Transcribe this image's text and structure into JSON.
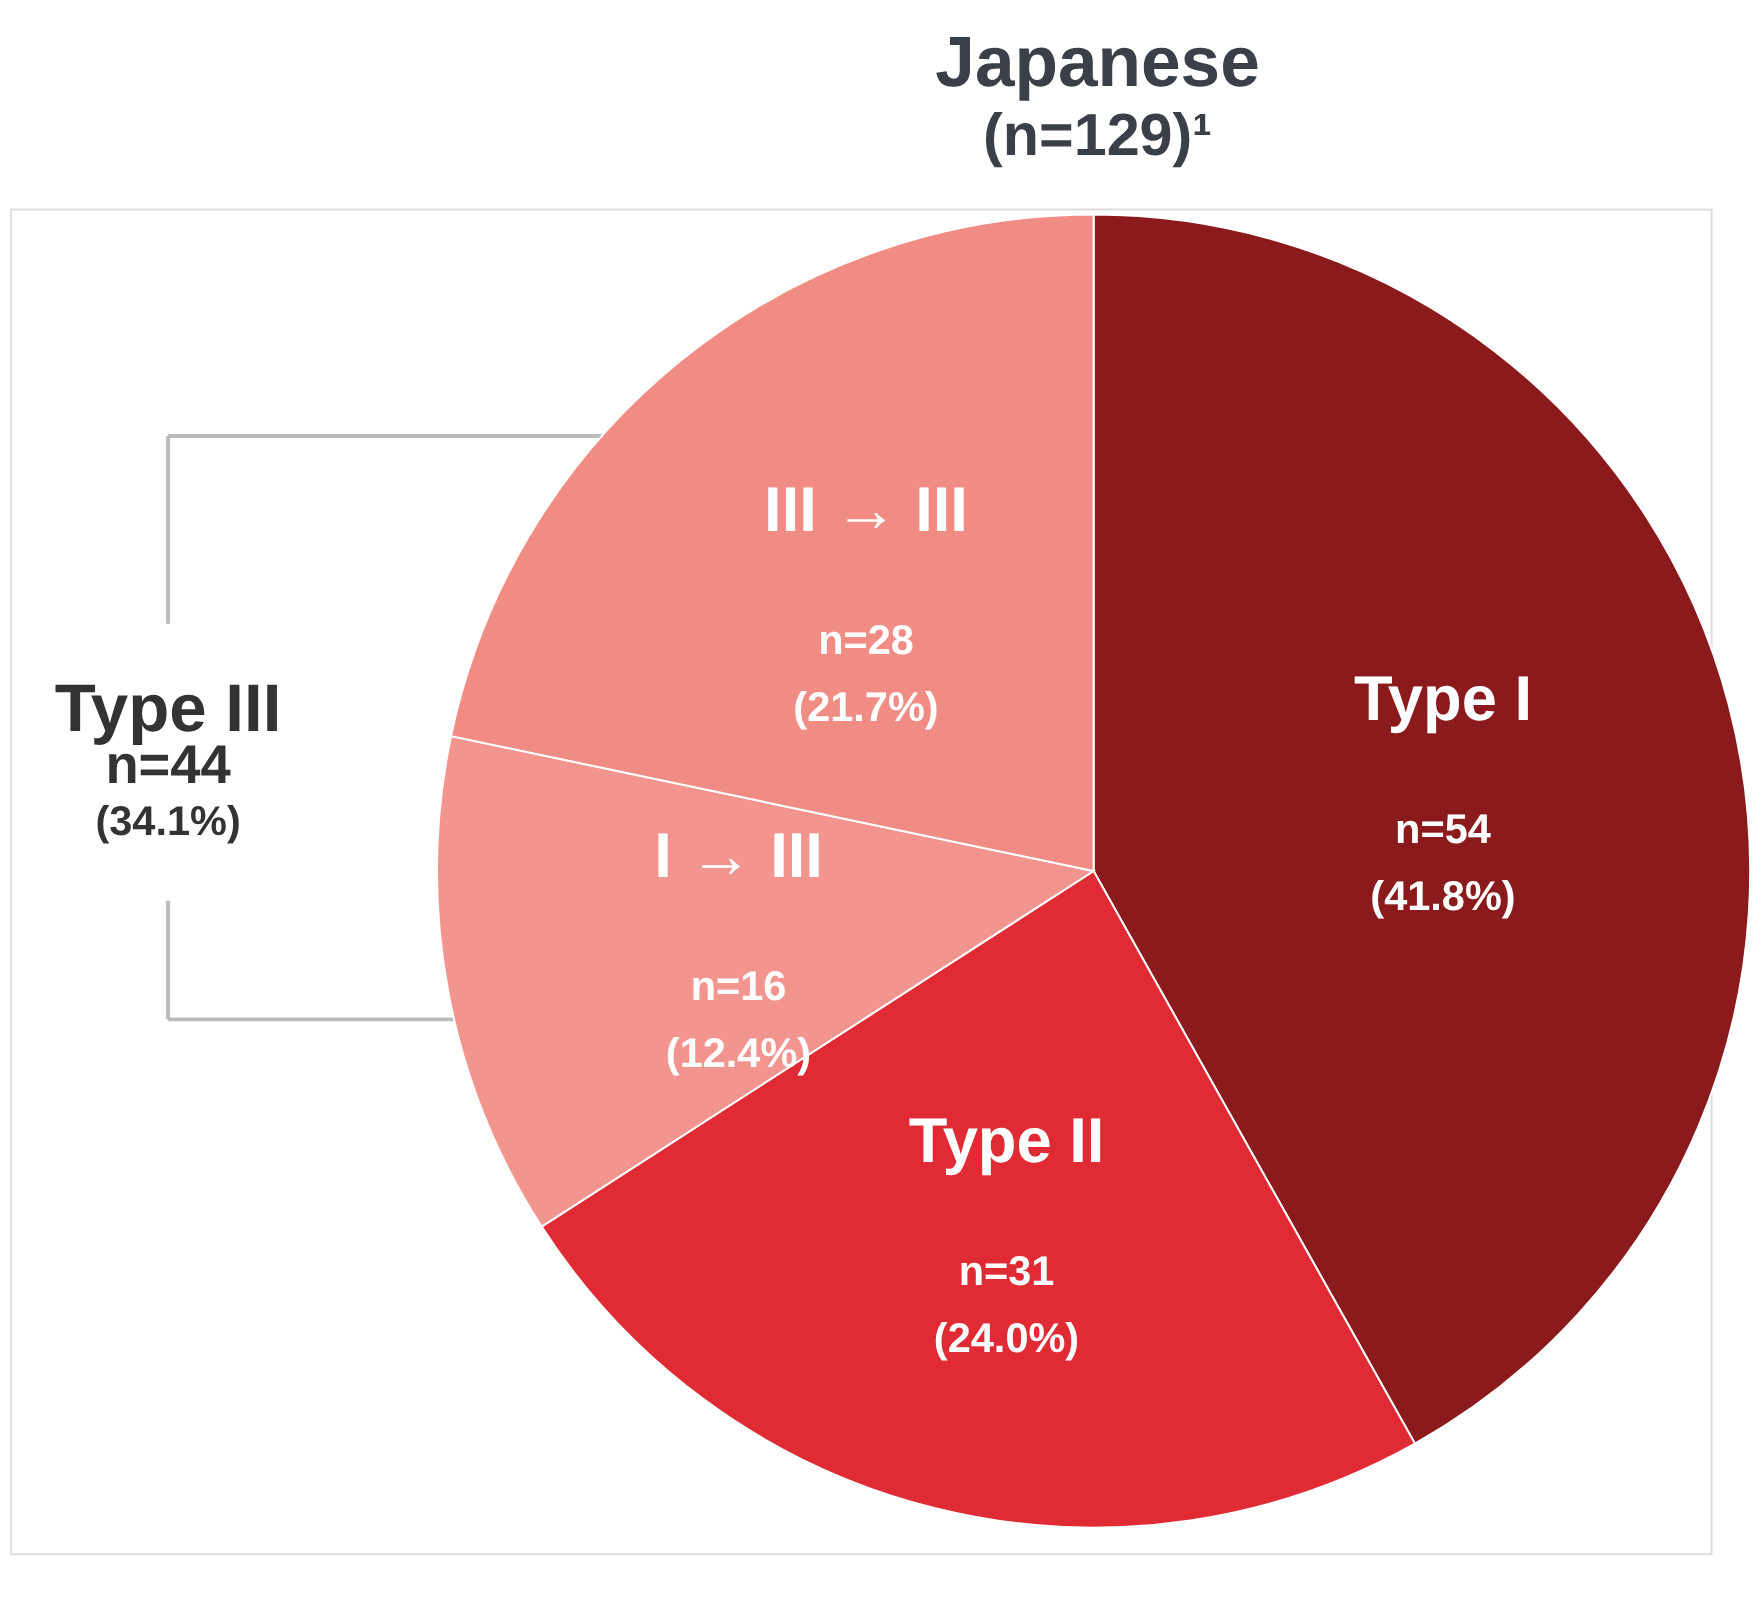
{
  "chart_data": {
    "type": "pie",
    "title": "Japanese",
    "subtitle": "(n=129)¹",
    "categories": [
      "Type I",
      "Type II",
      "I → III",
      "III → III"
    ],
    "values": [
      54,
      31,
      16,
      28
    ],
    "colors": [
      "#8a1a1c",
      "#e02b35",
      "#f3958f",
      "#f08c84"
    ],
    "value_labels": [
      "n=54\n(41.8%)",
      "n=31\n(24.0%)",
      "n=16\n(12.4%)",
      "n=28\n(21.7%)"
    ],
    "annotations": [
      "Type III\nn=44\n(34.1%)"
    ],
    "legend": false
  }
}
